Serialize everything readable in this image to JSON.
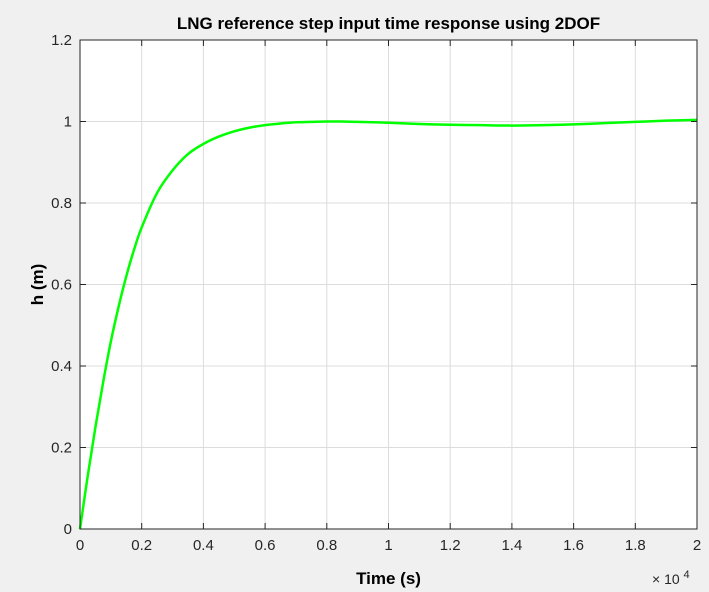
{
  "chart_data": {
    "type": "line",
    "title": "LNG reference step input time response using 2DOF",
    "xlabel": "Time (s)",
    "ylabel": "h (m)",
    "x_exponent_label": "× 10",
    "x_exponent_power": "4",
    "xlim": [
      0,
      20000
    ],
    "ylim": [
      0,
      1.2
    ],
    "grid": true,
    "x_ticks": [
      0,
      2000,
      4000,
      6000,
      8000,
      10000,
      12000,
      14000,
      16000,
      18000,
      20000
    ],
    "x_tick_labels": [
      "0",
      "0.2",
      "0.4",
      "0.6",
      "0.8",
      "1",
      "1.2",
      "1.4",
      "1.6",
      "1.8",
      "2"
    ],
    "y_ticks": [
      0,
      0.2,
      0.4,
      0.6,
      0.8,
      1.0,
      1.2
    ],
    "y_tick_labels": [
      "0",
      "0.2",
      "0.4",
      "0.6",
      "0.8",
      "1",
      "1.2"
    ],
    "colors": {
      "line": "#00ff00",
      "axes_bg": "#ffffff",
      "figure_bg": "#f0f0f0",
      "grid": "#dcdcdc",
      "axis": "#262626"
    },
    "series": [
      {
        "x": [
          0,
          250,
          500,
          750,
          1000,
          1250,
          1500,
          1750,
          2000,
          2500,
          3000,
          3500,
          4000,
          4500,
          5000,
          5500,
          6000,
          6500,
          7000,
          7500,
          8000,
          8500,
          9000,
          10000,
          11000,
          12000,
          13000,
          14000,
          15000,
          16000,
          17000,
          18000,
          19000,
          20000
        ],
        "y": [
          0,
          0.13,
          0.25,
          0.36,
          0.46,
          0.545,
          0.62,
          0.685,
          0.74,
          0.825,
          0.88,
          0.92,
          0.945,
          0.963,
          0.976,
          0.985,
          0.991,
          0.995,
          0.998,
          0.999,
          1.0,
          1.0,
          0.999,
          0.997,
          0.994,
          0.992,
          0.991,
          0.99,
          0.991,
          0.993,
          0.996,
          0.999,
          1.002,
          1.004
        ]
      }
    ]
  }
}
